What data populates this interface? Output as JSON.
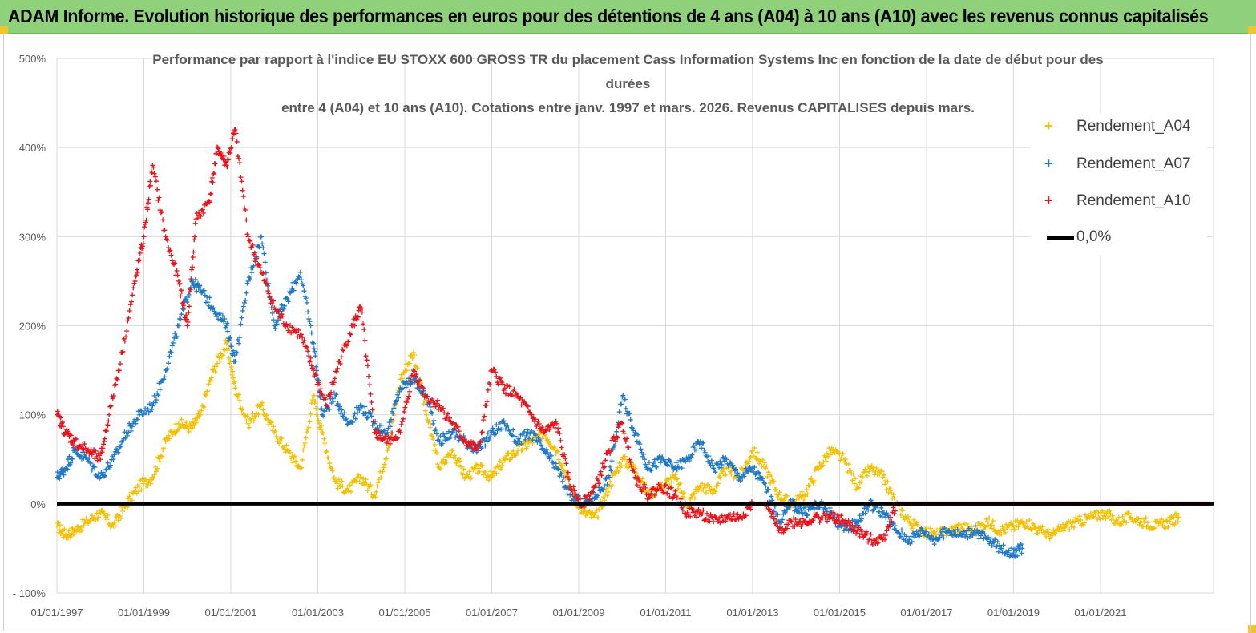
{
  "banner": {
    "title": "ADAM Informe. Evolution historique des performances en euros pour des détentions de 4 ans (A04) à 10 ans (A10) avec les revenus connus capitalisés"
  },
  "colors": {
    "banner_bg": "#8fd17b",
    "a04": "#f5c000",
    "a07": "#1f78c8",
    "a10": "#e8141c",
    "zero_line": "#000000",
    "grid": "#d9d9d9"
  },
  "chart_data": {
    "type": "scatter",
    "title_lines": [
      "Performance par rapport à l'indice EU STOXX 600 GROSS TR  du placement Cass Information Systems Inc en fonction de la date de début pour des",
      "durées",
      "entre 4 (A04) et 10 ans (A10).  Cotations entre janv. 1997 et mars. 2026. Revenus CAPITALISES depuis mars."
    ],
    "xlabel": "",
    "ylabel": "",
    "x_range": [
      1997.0,
      2023.6
    ],
    "ylim": [
      -100,
      500
    ],
    "y_ticks": [
      -100,
      0,
      100,
      200,
      300,
      400,
      500
    ],
    "y_tick_labels": [
      "- 100%",
      "0%",
      "100%",
      "200%",
      "300%",
      "400%",
      "500%"
    ],
    "x_ticks": [
      1997,
      1999,
      2001,
      2003,
      2005,
      2007,
      2009,
      2011,
      2013,
      2015,
      2017,
      2019,
      2021
    ],
    "x_tick_labels": [
      "01/01/1997",
      "01/01/1999",
      "01/01/2001",
      "01/01/2003",
      "01/01/2005",
      "01/01/2007",
      "01/01/2009",
      "01/01/2011",
      "01/01/2013",
      "01/01/2015",
      "01/01/2017",
      "01/01/2019",
      "01/01/2021"
    ],
    "grid": true,
    "legend_position": "top-right",
    "series": [
      {
        "name": "Rendement_A04",
        "marker": "+",
        "x": [
          1997.0,
          1997.2,
          1997.4,
          1997.7,
          1998.0,
          1998.3,
          1998.6,
          1998.9,
          1999.2,
          1999.5,
          1999.8,
          2000.1,
          2000.3,
          2000.6,
          2000.9,
          2001.1,
          2001.4,
          2001.7,
          2002.0,
          2002.3,
          2002.6,
          2002.9,
          2003.1,
          2003.4,
          2003.7,
          2004.0,
          2004.3,
          2004.6,
          2004.9,
          2005.2,
          2005.5,
          2005.8,
          2006.1,
          2006.4,
          2006.7,
          2007.0,
          2007.3,
          2007.6,
          2007.9,
          2008.2,
          2008.5,
          2008.8,
          2009.1,
          2009.4,
          2009.7,
          2010.0,
          2010.3,
          2010.6,
          2010.9,
          2011.2,
          2011.5,
          2011.8,
          2012.1,
          2012.4,
          2012.7,
          2013.0,
          2013.3,
          2013.6,
          2013.9,
          2014.2,
          2014.5,
          2014.8,
          2015.1,
          2015.4,
          2015.7,
          2016.0,
          2016.3,
          2016.6,
          2016.9,
          2017.2,
          2017.5,
          2017.8,
          2018.1,
          2018.4,
          2018.7,
          2019.0,
          2019.3,
          2019.6,
          2019.9,
          2020.2,
          2020.5,
          2020.8,
          2021.1,
          2021.4,
          2021.7,
          2022.0,
          2022.3,
          2022.6,
          2022.8
        ],
        "values": [
          -25,
          -35,
          -30,
          -20,
          -10,
          -25,
          0,
          20,
          30,
          70,
          90,
          85,
          100,
          150,
          180,
          130,
          90,
          110,
          80,
          60,
          40,
          120,
          80,
          25,
          15,
          30,
          10,
          60,
          140,
          170,
          100,
          40,
          60,
          30,
          40,
          30,
          50,
          60,
          70,
          80,
          60,
          20,
          -10,
          -15,
          20,
          50,
          40,
          10,
          20,
          30,
          0,
          20,
          15,
          40,
          30,
          60,
          40,
          10,
          0,
          10,
          40,
          60,
          50,
          20,
          40,
          30,
          0,
          -20,
          -30,
          -35,
          -30,
          -25,
          -30,
          -20,
          -30,
          -25,
          -20,
          -30,
          -35,
          -25,
          -20,
          -15,
          -10,
          -20,
          -15,
          -20,
          -25,
          -20,
          -15
        ]
      },
      {
        "name": "Rendement_A07",
        "marker": "+",
        "x": [
          1997.0,
          1997.2,
          1997.4,
          1997.7,
          1998.0,
          1998.3,
          1998.6,
          1998.9,
          1999.2,
          1999.5,
          1999.8,
          2000.1,
          2000.3,
          2000.6,
          2000.9,
          2001.1,
          2001.4,
          2001.7,
          2002.0,
          2002.3,
          2002.6,
          2002.9,
          2003.1,
          2003.4,
          2003.7,
          2004.0,
          2004.3,
          2004.6,
          2004.9,
          2005.2,
          2005.5,
          2005.8,
          2006.1,
          2006.4,
          2006.7,
          2007.0,
          2007.3,
          2007.6,
          2007.9,
          2008.2,
          2008.5,
          2008.8,
          2009.1,
          2009.4,
          2009.7,
          2010.0,
          2010.3,
          2010.6,
          2010.9,
          2011.2,
          2011.5,
          2011.8,
          2012.1,
          2012.4,
          2012.7,
          2013.0,
          2013.3,
          2013.6,
          2013.9,
          2014.2,
          2014.5,
          2014.8,
          2015.1,
          2015.4,
          2015.7,
          2016.0,
          2016.3,
          2016.6,
          2016.9,
          2017.2,
          2017.5,
          2017.8,
          2018.1,
          2018.4,
          2018.7,
          2019.0,
          2019.2
        ],
        "values": [
          30,
          40,
          60,
          50,
          30,
          50,
          80,
          100,
          110,
          150,
          200,
          250,
          240,
          220,
          200,
          160,
          250,
          300,
          200,
          230,
          260,
          180,
          100,
          120,
          90,
          110,
          90,
          80,
          130,
          140,
          120,
          70,
          80,
          70,
          60,
          80,
          90,
          70,
          80,
          60,
          40,
          10,
          0,
          10,
          30,
          120,
          80,
          40,
          50,
          40,
          50,
          70,
          40,
          50,
          30,
          40,
          20,
          -20,
          0,
          -10,
          0,
          -10,
          -30,
          -20,
          0,
          -10,
          -30,
          -40,
          -30,
          -40,
          -30,
          -35,
          -30,
          -40,
          -50,
          -55,
          -50
        ]
      },
      {
        "name": "Rendement_A10",
        "marker": "+",
        "x": [
          1997.0,
          1997.2,
          1997.4,
          1997.7,
          1998.0,
          1998.2,
          1998.5,
          1998.8,
          1999.0,
          1999.2,
          1999.5,
          1999.8,
          2000.0,
          2000.2,
          2000.5,
          2000.7,
          2000.9,
          2001.1,
          2001.4,
          2001.7,
          2002.0,
          2002.3,
          2002.6,
          2002.9,
          2003.2,
          2003.5,
          2003.8,
          2004.0,
          2004.3,
          2004.6,
          2004.9,
          2005.2,
          2005.5,
          2005.8,
          2006.1,
          2006.4,
          2006.7,
          2007.0,
          2007.3,
          2007.6,
          2007.9,
          2008.2,
          2008.5,
          2008.8,
          2009.1,
          2009.4,
          2009.7,
          2010.0,
          2010.3,
          2010.6,
          2010.9,
          2011.2,
          2011.5,
          2011.8,
          2012.1,
          2012.4,
          2012.7,
          2013.0,
          2013.3,
          2013.6,
          2013.9,
          2014.2,
          2014.5,
          2014.8,
          2015.1,
          2015.4,
          2015.7,
          2016.0,
          2016.3,
          2016.6,
          2016.9,
          2017.2,
          2017.5,
          2017.8,
          2018.1,
          2018.4,
          2018.7,
          2019.0,
          2019.3,
          2019.6,
          2019.9,
          2020.2,
          2020.5,
          2020.8,
          2021.1,
          2021.4,
          2021.7,
          2022.0,
          2022.3,
          2022.6,
          2022.9,
          2023.2,
          2023.5
        ],
        "values": [
          100,
          80,
          70,
          60,
          50,
          100,
          170,
          250,
          300,
          380,
          300,
          250,
          200,
          320,
          340,
          400,
          380,
          420,
          300,
          260,
          220,
          200,
          190,
          150,
          110,
          160,
          200,
          220,
          80,
          70,
          80,
          150,
          120,
          110,
          90,
          70,
          60,
          150,
          130,
          120,
          100,
          80,
          90,
          20,
          0,
          20,
          60,
          90,
          30,
          10,
          20,
          10,
          -10,
          -10,
          -20,
          -15,
          -15,
          0,
          0,
          -30,
          -20,
          -20,
          -15,
          -15,
          -20,
          -30,
          -40,
          -40,
          0,
          0,
          0,
          0,
          0,
          0,
          0,
          0,
          0,
          0,
          0,
          0,
          0,
          0,
          0,
          0,
          0,
          0,
          0,
          0,
          0,
          0,
          0,
          0,
          0
        ]
      },
      {
        "name": "0,0%",
        "marker": "line",
        "x": [
          1997.0,
          2023.6
        ],
        "values": [
          0,
          0
        ]
      }
    ]
  }
}
